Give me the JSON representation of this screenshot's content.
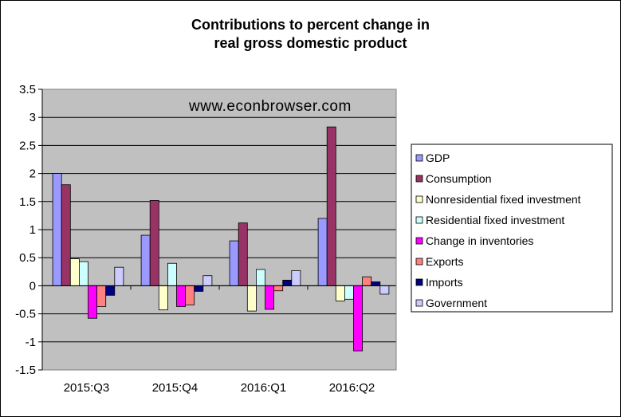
{
  "chart_data": {
    "type": "bar",
    "title": "Contributions to percent change in",
    "subtitle": "real gross domestic product",
    "annotation": "www.econbrowser.com",
    "xlabel": "",
    "ylabel": "",
    "categories": [
      "2015:Q3",
      "2015:Q4",
      "2016:Q1",
      "2016:Q2"
    ],
    "ylim": [
      -1.5,
      3.5
    ],
    "yticks": [
      "3.5",
      "3",
      "2.5",
      "2",
      "1.5",
      "1",
      "0.5",
      "0",
      "-0.5",
      "-1",
      "-1.5"
    ],
    "ytick_values": [
      3.5,
      3,
      2.5,
      2,
      1.5,
      1,
      0.5,
      0,
      -0.5,
      -1,
      -1.5
    ],
    "grid": true,
    "legend_position": "right",
    "plot_background": "#c0c0c0",
    "series": [
      {
        "name": "GDP",
        "color": "#9999ff",
        "values": [
          2.0,
          0.9,
          0.8,
          1.2
        ]
      },
      {
        "name": "Consumption",
        "color": "#993366",
        "values": [
          1.8,
          1.52,
          1.12,
          2.83
        ]
      },
      {
        "name": "Nonresidential fixed investment",
        "color": "#ffffcc",
        "values": [
          0.48,
          -0.43,
          -0.45,
          -0.27
        ]
      },
      {
        "name": "Residential fixed investment",
        "color": "#ccffff",
        "values": [
          0.43,
          0.4,
          0.29,
          -0.24
        ]
      },
      {
        "name": "Change in inventories",
        "color": "#ff00ff",
        "values": [
          -0.58,
          -0.37,
          -0.42,
          -1.16
        ]
      },
      {
        "name": "Exports",
        "color": "#ff8080",
        "values": [
          -0.37,
          -0.34,
          -0.09,
          0.16
        ]
      },
      {
        "name": "Imports",
        "color": "#000080",
        "values": [
          -0.17,
          -0.1,
          0.1,
          0.07
        ]
      },
      {
        "name": "Government",
        "color": "#ccccff",
        "values": [
          0.33,
          0.18,
          0.27,
          -0.15
        ]
      }
    ]
  }
}
